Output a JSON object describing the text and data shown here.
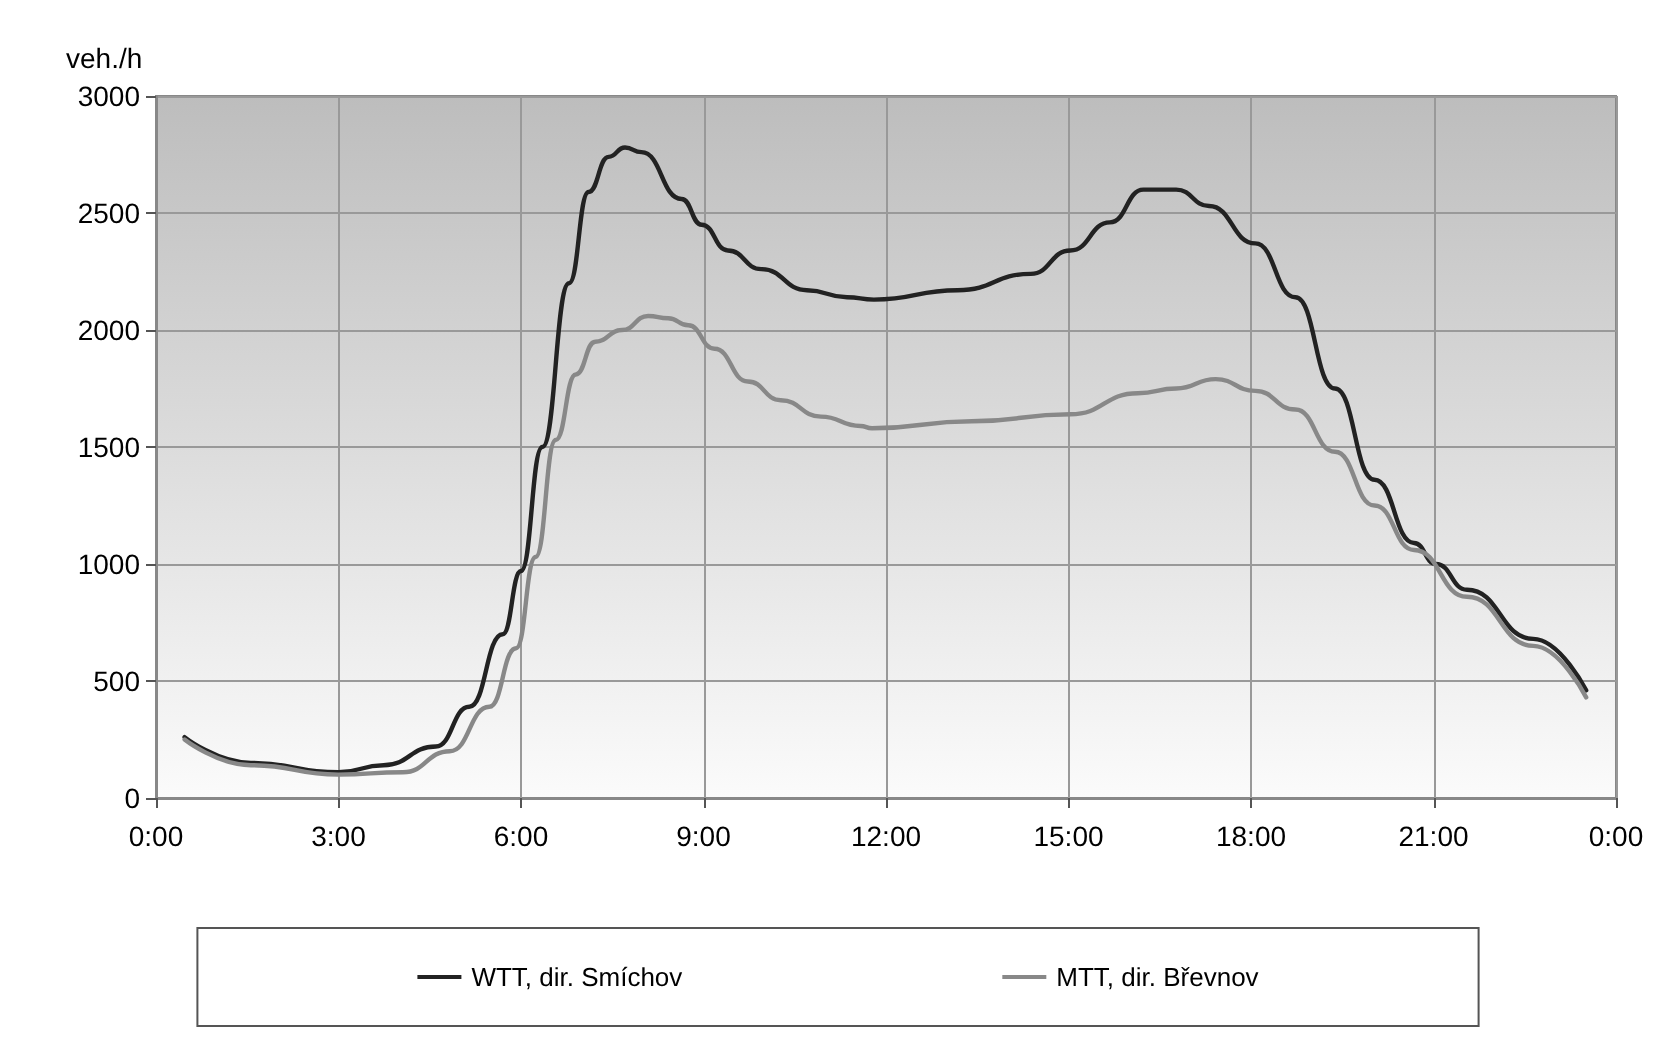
{
  "chart_data": {
    "type": "line",
    "ylabel": "veh./h",
    "xlim": [
      0,
      24
    ],
    "xticks": [
      {
        "value": 0,
        "label": "0:00"
      },
      {
        "value": 3,
        "label": "3:00"
      },
      {
        "value": 6,
        "label": "6:00"
      },
      {
        "value": 9,
        "label": "9:00"
      },
      {
        "value": 12,
        "label": "12:00"
      },
      {
        "value": 15,
        "label": "15:00"
      },
      {
        "value": 18,
        "label": "18:00"
      },
      {
        "value": 21,
        "label": "21:00"
      },
      {
        "value": 24,
        "label": "0:00"
      }
    ],
    "ylim": [
      0,
      3000
    ],
    "yticks": [
      0,
      500,
      1000,
      1500,
      2000,
      2500,
      3000
    ],
    "grid": true,
    "legend": "bottom",
    "marker": "none",
    "line_style": "solid",
    "series": [
      {
        "name": "WTT, dir. Smíchov",
        "color": "#222222",
        "x": [
          0.47,
          1.56,
          3,
          3.74,
          4.6,
          5.15,
          5.7,
          6,
          6.35,
          6.79,
          7.11,
          7.44,
          7.71,
          7.98,
          8.64,
          8.97,
          9.4,
          9.95,
          10.7,
          11.36,
          11.8,
          13.18,
          14.38,
          15.03,
          15.68,
          16.23,
          16.77,
          17.31,
          18.07,
          18.73,
          19.38,
          20.03,
          20.68,
          21.04,
          21.55,
          22.64,
          23.51
        ],
        "values": [
          260,
          150,
          110,
          140,
          220,
          390,
          700,
          970,
          1500,
          2200,
          2590,
          2740,
          2780,
          2760,
          2560,
          2450,
          2340,
          2260,
          2170,
          2140,
          2130,
          2170,
          2240,
          2340,
          2460,
          2600,
          2600,
          2530,
          2370,
          2140,
          1750,
          1360,
          1090,
          1000,
          890,
          680,
          460
        ]
      },
      {
        "name": "MTT, dir. Břevnov",
        "color": "#888888",
        "x": [
          0.47,
          1.56,
          3,
          4.06,
          4.83,
          5.48,
          5.92,
          6.24,
          6.57,
          6.9,
          7.22,
          7.66,
          8.09,
          8.42,
          8.75,
          9.18,
          9.73,
          10.27,
          10.93,
          11.58,
          11.77,
          13.41,
          15.03,
          16.14,
          16.77,
          17.42,
          18.07,
          18.73,
          19.38,
          20.03,
          20.68,
          21.55,
          22.64,
          23.51
        ],
        "values": [
          250,
          140,
          100,
          110,
          200,
          390,
          640,
          1030,
          1530,
          1810,
          1950,
          2000,
          2060,
          2050,
          2020,
          1920,
          1780,
          1700,
          1630,
          1590,
          1580,
          1610,
          1640,
          1730,
          1750,
          1790,
          1740,
          1660,
          1480,
          1250,
          1060,
          860,
          650,
          430
        ]
      }
    ]
  }
}
